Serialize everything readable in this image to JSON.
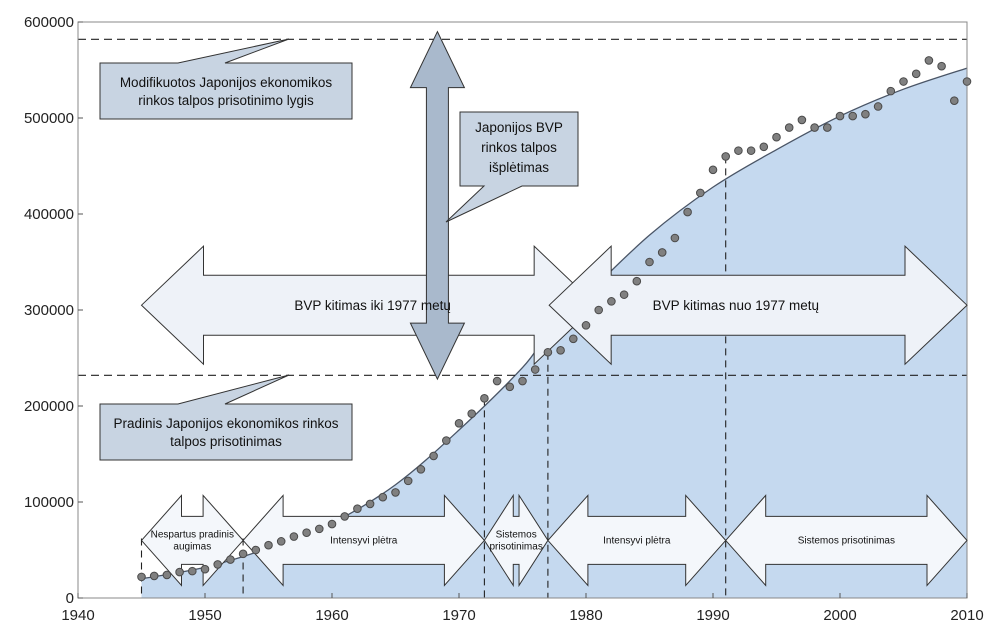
{
  "colors": {
    "area_fill": "#c5d9ef",
    "curve": "#4a5566",
    "marker_fill": "#808080",
    "marker_edge": "#4a4a4a",
    "callout_fill": "#c8d4e2",
    "arrow_fill": "#eef2f8"
  },
  "chart_data": {
    "type": "scatter",
    "title": "",
    "xlabel": "",
    "ylabel": "",
    "xlim": [
      1940,
      2010
    ],
    "ylim": [
      0,
      600000
    ],
    "x_ticks": [
      "1940",
      "1950",
      "1960",
      "1970",
      "1980",
      "1990",
      "2000",
      "2010"
    ],
    "y_ticks": [
      "0",
      "100000",
      "200000",
      "300000",
      "400000",
      "500000",
      "600000"
    ],
    "grid": false,
    "series": [
      {
        "x": [
          1945,
          1946,
          1947,
          1948,
          1949,
          1950,
          1951,
          1952,
          1953,
          1954,
          1955,
          1956,
          1957,
          1958,
          1959,
          1960,
          1961,
          1962,
          1963,
          1964,
          1965,
          1966,
          1967,
          1968,
          1969,
          1970,
          1971,
          1972,
          1973,
          1974,
          1975,
          1976,
          1977,
          1978,
          1979,
          1980,
          1981,
          1982,
          1983,
          1984,
          1985,
          1986,
          1987,
          1988,
          1989,
          1990,
          1991,
          1992,
          1993,
          1994,
          1995,
          1996,
          1997,
          1998,
          1999,
          2000,
          2001,
          2002,
          2003,
          2004,
          2005,
          2006,
          2007,
          2008,
          2009,
          2010
        ],
        "values": [
          22000,
          23000,
          24000,
          27000,
          28000,
          30000,
          35000,
          40000,
          46000,
          50000,
          55000,
          59000,
          64000,
          68000,
          72000,
          77000,
          85000,
          93000,
          98000,
          105000,
          110000,
          122000,
          134000,
          148000,
          164000,
          182000,
          192000,
          208000,
          226000,
          220000,
          226000,
          238000,
          256000,
          258000,
          270000,
          284000,
          300000,
          309000,
          316000,
          330000,
          350000,
          360000,
          375000,
          402000,
          422000,
          446000,
          460000,
          466000,
          466000,
          470000,
          480000,
          490000,
          498000,
          490000,
          490000,
          502000,
          502000,
          504000,
          512000,
          528000,
          538000,
          546000,
          560000,
          554000,
          518000,
          538000
        ]
      },
      {
        "type": "line",
        "x": [
          1945,
          1950,
          1955,
          1960,
          1965,
          1970,
          1975,
          1977,
          1980,
          1985,
          1990,
          1995,
          2000,
          2005,
          2010
        ],
        "values": [
          20000,
          32000,
          52000,
          78000,
          118000,
          175000,
          240000,
          275000,
          315000,
          378000,
          428000,
          467000,
          502000,
          530000,
          552000
        ]
      }
    ],
    "reference_lines": {
      "horizontal": [
        582000,
        232000
      ],
      "vertical": [
        1945,
        1953,
        1972,
        1977,
        1991
      ]
    },
    "callouts": [
      {
        "lines": [
          "Modifikuotos Japonijos ekonomikos",
          "rinkos talpos prisotinimo lygis"
        ]
      },
      {
        "lines": [
          "Japonijos BVP",
          "rinkos talpos",
          "išplėtimas"
        ]
      },
      {
        "lines": [
          "Pradinis Japonijos ekonomikos rinkos",
          "talpos prisotinimas"
        ]
      }
    ],
    "big_arrows": [
      {
        "label": "BVP kitimas iki 1977 metų"
      },
      {
        "label": "BVP kitimas nuo 1977 metų"
      }
    ],
    "phases": [
      {
        "lines": [
          "Nespartus pradinis",
          "augimas"
        ]
      },
      {
        "lines": [
          "Intensyvi plėtra"
        ]
      },
      {
        "lines": [
          "Sistemos",
          "prisotinimas"
        ]
      },
      {
        "lines": [
          "Intensyvi plėtra"
        ]
      },
      {
        "lines": [
          "Sistemos prisotinimas"
        ]
      }
    ]
  }
}
